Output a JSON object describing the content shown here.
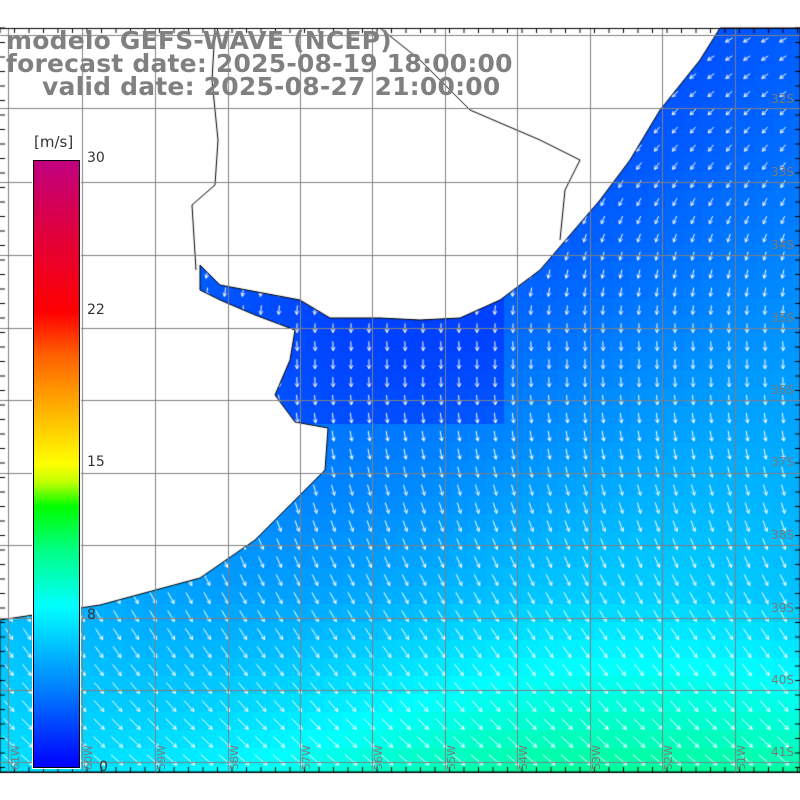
{
  "header": {
    "model": "modelo GEFS-WAVE (NCEP)",
    "forecast": "forecast date: 2025-08-19 18:00:00",
    "valid": "valid date: 2025-08-27 21:00:00"
  },
  "colorbar": {
    "unit": "[m/s]",
    "labels": [
      "30",
      "22",
      "15",
      "8",
      "0"
    ],
    "min": 0,
    "max": 30,
    "colors": [
      "#0000ff",
      "#00ffff",
      "#00ff00",
      "#ffff00",
      "#ff0000",
      "#c0007f"
    ]
  },
  "axes": {
    "lat_labels": [
      "32S",
      "33S",
      "34S",
      "35S",
      "36S",
      "37S",
      "38S",
      "39S",
      "40S",
      "41S"
    ],
    "lon_labels": [
      "61W",
      "60W",
      "59W",
      "58W",
      "57W",
      "56W",
      "55W",
      "54W",
      "53W",
      "52W",
      "51W"
    ]
  }
}
